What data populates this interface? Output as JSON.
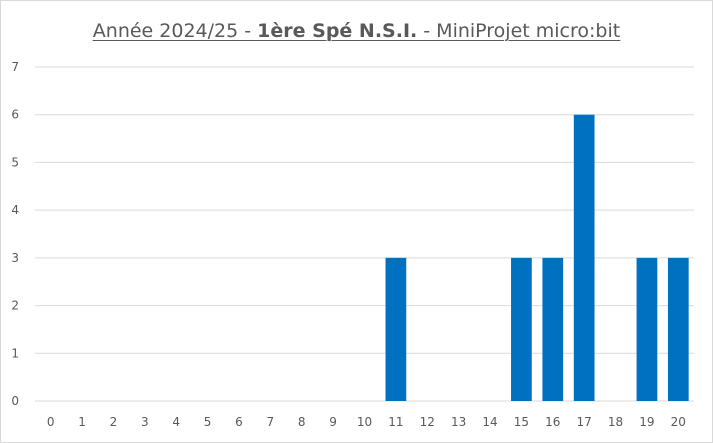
{
  "chart_data": {
    "type": "bar",
    "title_parts": {
      "prefix": "Année 2024/25 - ",
      "bold": "1ère Spé N.S.I.",
      "suffix": " - MiniProjet micro:bit"
    },
    "categories": [
      "0",
      "1",
      "2",
      "3",
      "4",
      "5",
      "6",
      "7",
      "8",
      "9",
      "10",
      "11",
      "12",
      "13",
      "14",
      "15",
      "16",
      "17",
      "18",
      "19",
      "20"
    ],
    "values": [
      0,
      0,
      0,
      0,
      0,
      0,
      0,
      0,
      0,
      0,
      0,
      3,
      0,
      0,
      0,
      3,
      3,
      6,
      0,
      3,
      3
    ],
    "xlabel": "",
    "ylabel": "",
    "ylim": [
      0,
      7
    ],
    "yticks": [
      0,
      1,
      2,
      3,
      4,
      5,
      6,
      7
    ],
    "grid": true,
    "legend": "none",
    "bar_color": "#0070C0",
    "grid_color": "#d9d9d9"
  }
}
